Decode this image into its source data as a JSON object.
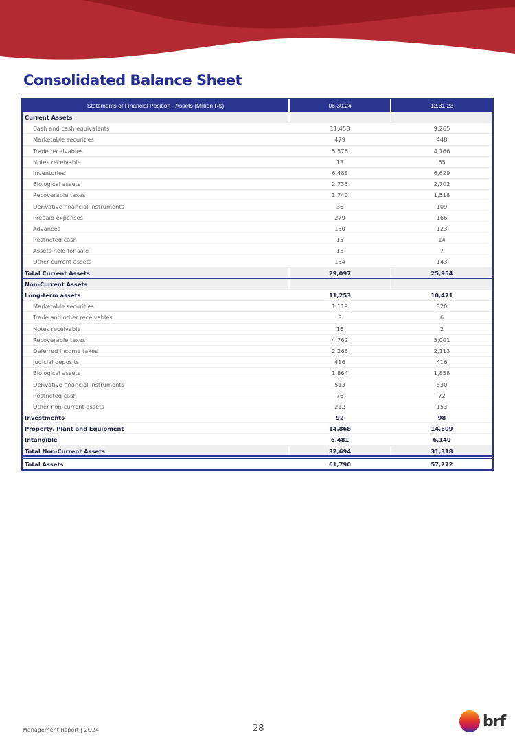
{
  "page": {
    "title": "Consolidated Balance Sheet",
    "footer": "Management Report | 2Q24",
    "page_number": "28",
    "logo_text": "brf"
  },
  "colors": {
    "brand_blue": "#2a3590",
    "banner_red": "#b42a32",
    "banner_dark_red": "#961b21"
  },
  "table": {
    "headers": [
      "Statements of Financial Position - Assets (Million R$)",
      "06.30.24",
      "12.31.23"
    ],
    "rows": [
      {
        "type": "section",
        "label": "Current Assets",
        "v1": "",
        "v2": ""
      },
      {
        "type": "item",
        "label": "Cash and cash equivalents",
        "v1": "11,458",
        "v2": "9,265"
      },
      {
        "type": "item",
        "label": "Marketable securities",
        "v1": "479",
        "v2": "448"
      },
      {
        "type": "item",
        "label": "Trade receivables",
        "v1": "5,576",
        "v2": "4,766"
      },
      {
        "type": "item",
        "label": "Notes receivable",
        "v1": "13",
        "v2": "65"
      },
      {
        "type": "item",
        "label": "Inventories",
        "v1": "6,488",
        "v2": "6,629"
      },
      {
        "type": "item",
        "label": "Biological assets",
        "v1": "2,735",
        "v2": "2,702"
      },
      {
        "type": "item",
        "label": "Recoverable taxes",
        "v1": "1,740",
        "v2": "1,518"
      },
      {
        "type": "item",
        "label": "Derivative financial instruments",
        "v1": "36",
        "v2": "109"
      },
      {
        "type": "item",
        "label": "Prepaid expenses",
        "v1": "279",
        "v2": "166"
      },
      {
        "type": "item",
        "label": "Advances",
        "v1": "130",
        "v2": "123"
      },
      {
        "type": "item",
        "label": "Restricted cash",
        "v1": "15",
        "v2": "14"
      },
      {
        "type": "item",
        "label": "Assets held for sale",
        "v1": "13",
        "v2": "7"
      },
      {
        "type": "item",
        "label": "Other current assets",
        "v1": "134",
        "v2": "143"
      },
      {
        "type": "total-sep",
        "label": "Total Current Assets",
        "v1": "29,097",
        "v2": "25,954"
      },
      {
        "type": "section",
        "label": "Non-Current Assets",
        "v1": "",
        "v2": ""
      },
      {
        "type": "bold",
        "label": "Long-term assets",
        "v1": "11,253",
        "v2": "10,471"
      },
      {
        "type": "item",
        "label": "Marketable securities",
        "v1": "1,119",
        "v2": "320"
      },
      {
        "type": "item",
        "label": "Trade and other receivables",
        "v1": "9",
        "v2": "6"
      },
      {
        "type": "item",
        "label": "Notes receivable",
        "v1": "16",
        "v2": "2"
      },
      {
        "type": "item",
        "label": "Recoverable taxes",
        "v1": "4,762",
        "v2": "5,001"
      },
      {
        "type": "item",
        "label": "Deferred income taxes",
        "v1": "2,266",
        "v2": "2,113"
      },
      {
        "type": "item",
        "label": "Judicial deposits",
        "v1": "416",
        "v2": "416"
      },
      {
        "type": "item",
        "label": "Biological assets",
        "v1": "1,864",
        "v2": "1,858"
      },
      {
        "type": "item",
        "label": "Derivative financial instruments",
        "v1": "513",
        "v2": "530"
      },
      {
        "type": "item",
        "label": "Restricted cash",
        "v1": "76",
        "v2": "72"
      },
      {
        "type": "item",
        "label": "Other non-current assets",
        "v1": "212",
        "v2": "153"
      },
      {
        "type": "bold",
        "label": "Investments",
        "v1": "92",
        "v2": "98"
      },
      {
        "type": "bold",
        "label": "Property, Plant and Equipment",
        "v1": "14,868",
        "v2": "14,609"
      },
      {
        "type": "bold",
        "label": "Intangible",
        "v1": "6,481",
        "v2": "6,140"
      },
      {
        "type": "total-sep",
        "label": "Total Non-Current Assets",
        "v1": "32,694",
        "v2": "31,318"
      },
      {
        "type": "grand",
        "label": "Total Assets",
        "v1": "61,790",
        "v2": "57,272"
      }
    ]
  }
}
